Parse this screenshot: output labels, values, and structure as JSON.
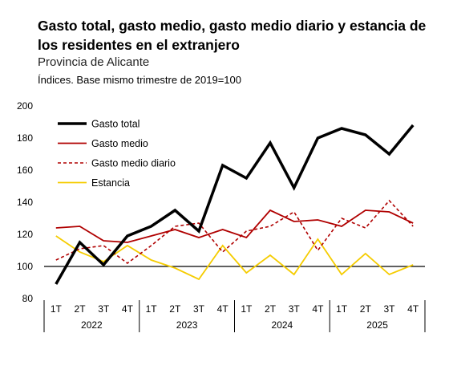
{
  "header": {
    "title": "Gasto total, gasto medio, gasto medio diario y estancia de los residentes en el extranjero",
    "subtitle": "Provincia de Alicante",
    "note": "Índices. Base mismo trimestre de 2019=100"
  },
  "chart_data": {
    "type": "line",
    "title": "Gasto total, gasto medio, gasto medio diario y estancia de los residentes en el extranjero",
    "subtitle": "Provincia de Alicante",
    "ylabel": "",
    "xlabel": "",
    "ylim": [
      80,
      200
    ],
    "yticks": [
      80,
      100,
      120,
      140,
      160,
      180,
      200
    ],
    "reference_line": 100,
    "grid": false,
    "legend_position": "top-left",
    "x": [
      "1T",
      "2T",
      "3T",
      "4T",
      "1T",
      "2T",
      "3T",
      "4T",
      "1T",
      "2T",
      "3T",
      "4T",
      "1T",
      "2T",
      "3T",
      "4T"
    ],
    "year_groups": [
      {
        "label": "2022",
        "count": 4
      },
      {
        "label": "2023",
        "count": 4
      },
      {
        "label": "2024",
        "count": 4
      },
      {
        "label": "2025",
        "count": 4
      }
    ],
    "series": [
      {
        "name": "Gasto total",
        "color": "#000000",
        "style": "solid-thick",
        "values": [
          89,
          115,
          101,
          119,
          125,
          135,
          122,
          163,
          155,
          177,
          149,
          180,
          186,
          182,
          170,
          188
        ]
      },
      {
        "name": "Gasto medio",
        "color": "#b00000",
        "style": "solid",
        "values": [
          124,
          125,
          116,
          115,
          119,
          123,
          118,
          123,
          118,
          135,
          128,
          129,
          125,
          135,
          134,
          127
        ]
      },
      {
        "name": "Gasto medio diario",
        "color": "#b00000",
        "style": "dashed",
        "values": [
          104,
          111,
          113,
          102,
          113,
          125,
          127,
          109,
          122,
          125,
          134,
          110,
          130,
          124,
          141,
          125
        ]
      },
      {
        "name": "Estancia",
        "color": "#f5cc00",
        "style": "solid",
        "values": [
          119,
          109,
          103,
          113,
          104,
          99,
          92,
          113,
          96,
          107,
          95,
          117,
          95,
          108,
          95,
          101
        ]
      }
    ]
  }
}
